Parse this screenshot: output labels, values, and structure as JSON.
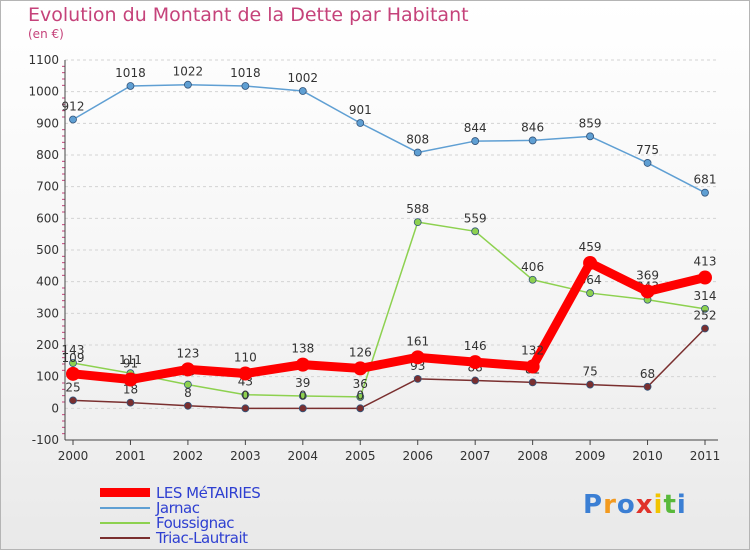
{
  "title": "Evolution du Montant de la Dette par Habitant",
  "subtitle": "(en €)",
  "logo": [
    "P",
    "r",
    "o",
    "x",
    "i",
    "t",
    "i"
  ],
  "logo_colors": [
    "#3b7fd4",
    "#f39a1f",
    "#3b7fd4",
    "#e0322a",
    "#f1c400",
    "#59b93b",
    "#3b7fd4"
  ],
  "chart_data": {
    "type": "line",
    "x": [
      "2000",
      "2001",
      "2002",
      "2003",
      "2004",
      "2005",
      "2006",
      "2007",
      "2008",
      "2009",
      "2010",
      "2011"
    ],
    "ylim": [
      -100,
      1100
    ],
    "yticks": [
      -100,
      0,
      100,
      200,
      300,
      400,
      500,
      600,
      700,
      800,
      900,
      1000,
      1100
    ],
    "grid": true,
    "series": [
      {
        "name": "LES MéTAIRIES",
        "color": "#ff0000",
        "values": [
          109,
          91,
          123,
          110,
          138,
          126,
          161,
          146,
          132,
          459,
          369,
          413
        ],
        "labels": [
          "109",
          "91",
          "123",
          "110",
          "138",
          "126",
          "161",
          "146",
          "132",
          "459",
          "369",
          "413"
        ]
      },
      {
        "name": "Jarnac",
        "color": "#5f9fd3",
        "values": [
          912,
          1018,
          1022,
          1018,
          1002,
          901,
          808,
          844,
          846,
          859,
          775,
          681
        ],
        "labels": [
          "912",
          "1018",
          "1022",
          "1018",
          "1002",
          "901",
          "808",
          "844",
          "846",
          "859",
          "775",
          "681"
        ]
      },
      {
        "name": "Foussignac",
        "color": "#8dd14f",
        "values": [
          143,
          111,
          75,
          43,
          39,
          36,
          588,
          559,
          406,
          364,
          343,
          314
        ],
        "labels": [
          "143",
          "111",
          "75",
          "43",
          "39",
          "36",
          "588",
          "559",
          "406",
          "364",
          "343",
          "314"
        ]
      },
      {
        "name": "Triac-Lautrait",
        "color": "#7a2f2f",
        "values": [
          25,
          18,
          8,
          0,
          0,
          0,
          93,
          88,
          82,
          75,
          68,
          252
        ],
        "labels": [
          "25",
          "18",
          "8",
          "0",
          "0",
          "0",
          "93",
          "88",
          "82",
          "75",
          "68",
          "252"
        ]
      }
    ]
  }
}
